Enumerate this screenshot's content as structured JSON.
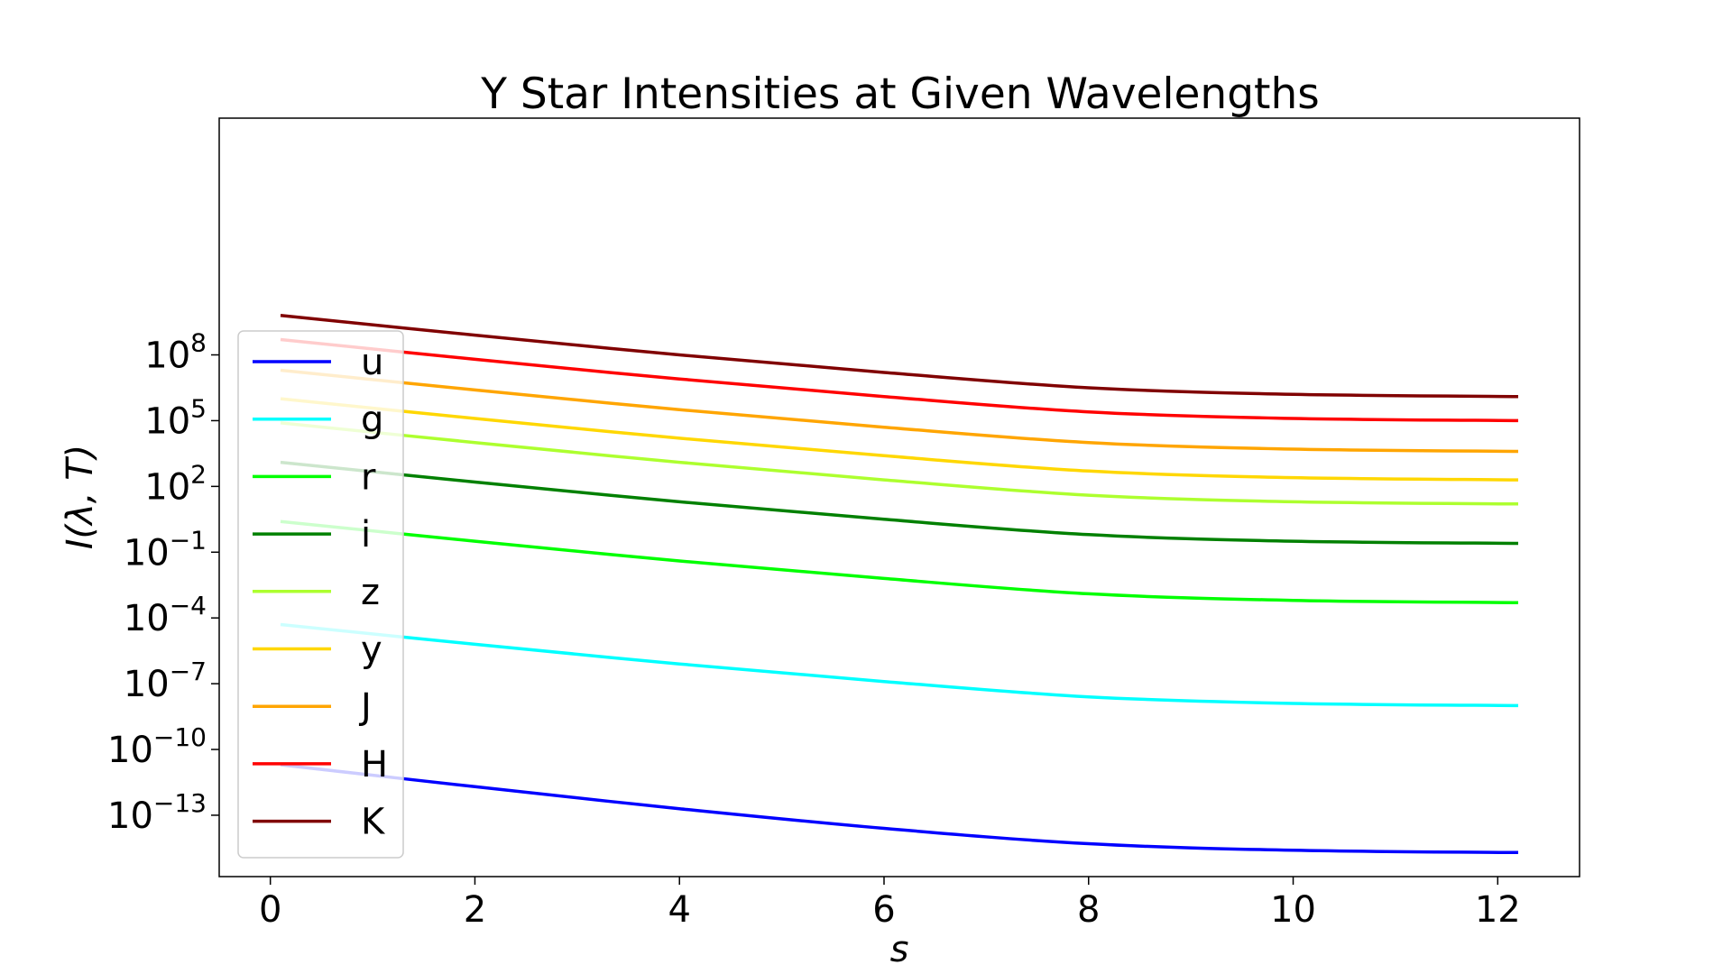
{
  "chart_data": {
    "type": "line",
    "title": "Y Star Intensities at Given Wavelengths",
    "xlabel": "s",
    "ylabel": "I(λ, T)",
    "xlim": [
      -0.5,
      12.8
    ],
    "ylim_log10": [
      -15.8,
      18.8
    ],
    "y_scale": "log",
    "grid": false,
    "legend_position": "lower-left",
    "x_ticks": [
      0,
      2,
      4,
      6,
      8,
      10,
      12
    ],
    "x_tick_labels": [
      "0",
      "2",
      "4",
      "6",
      "8",
      "10",
      "12"
    ],
    "y_ticks_log10": [
      -13,
      -10,
      -7,
      -4,
      -1,
      2,
      5,
      8
    ],
    "y_tick_labels": [
      {
        "base": "10",
        "exp": "−13"
      },
      {
        "base": "10",
        "exp": "−10"
      },
      {
        "base": "10",
        "exp": "−7"
      },
      {
        "base": "10",
        "exp": "−4"
      },
      {
        "base": "10",
        "exp": "−1"
      },
      {
        "base": "10",
        "exp": "2"
      },
      {
        "base": "10",
        "exp": "5"
      },
      {
        "base": "10",
        "exp": "8"
      }
    ],
    "x": [
      0.1,
      2,
      4,
      6,
      8,
      10,
      12.2
    ],
    "series": [
      {
        "name": "u",
        "color": "#0000ff",
        "log10_values": [
          -10.7,
          -11.7,
          -12.7,
          -13.6,
          -14.3,
          -14.6,
          -14.7
        ]
      },
      {
        "name": "g",
        "color": "#00ffff",
        "log10_values": [
          -4.3,
          -5.2,
          -6.1,
          -6.9,
          -7.6,
          -7.9,
          -8.0
        ]
      },
      {
        "name": "r",
        "color": "#00ff00",
        "log10_values": [
          0.4,
          -0.5,
          -1.4,
          -2.2,
          -2.9,
          -3.2,
          -3.3
        ]
      },
      {
        "name": "i",
        "color": "#008000",
        "log10_values": [
          3.1,
          2.2,
          1.3,
          0.5,
          -0.2,
          -0.5,
          -0.6
        ]
      },
      {
        "name": "z",
        "color": "#adff2f",
        "log10_values": [
          4.9,
          4.0,
          3.1,
          2.3,
          1.6,
          1.3,
          1.2
        ]
      },
      {
        "name": "y",
        "color": "#ffd700",
        "log10_values": [
          6.0,
          5.1,
          4.2,
          3.4,
          2.7,
          2.4,
          2.3
        ]
      },
      {
        "name": "J",
        "color": "#ffa500",
        "log10_values": [
          7.3,
          6.4,
          5.5,
          4.7,
          4.0,
          3.7,
          3.6
        ]
      },
      {
        "name": "H",
        "color": "#ff0000",
        "log10_values": [
          8.7,
          7.8,
          6.9,
          6.1,
          5.4,
          5.1,
          5.0
        ]
      },
      {
        "name": "K",
        "color": "#800000",
        "log10_values": [
          9.8,
          8.9,
          8.0,
          7.2,
          6.5,
          6.2,
          6.1
        ]
      }
    ]
  }
}
